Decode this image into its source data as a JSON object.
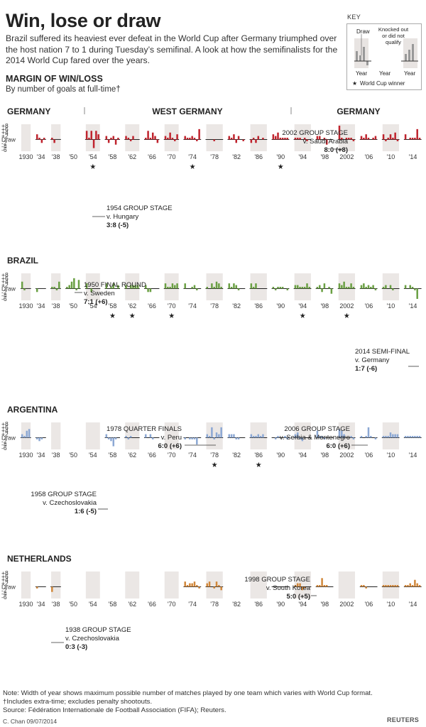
{
  "title": "Win, lose or draw",
  "intro": "Brazil suffered its heaviest ever defeat in the World Cup after Germany triumphed over the host nation 7 to 1 during Tuesday’s semifinal. A look at how the semifinalists for the 2014 World Cup fared over the years.",
  "subhead": "MARGIN OF WIN/LOSS",
  "subhead2": "By number of goals at full-time†",
  "key": {
    "title": "KEY",
    "draw": "Draw",
    "knocked_out": "Knocked out or did not qualify",
    "year": "Year",
    "winner": "World Cup winner"
  },
  "footnote": [
    "Note: Width of year shows maximum possible number of matches played by one team which varies with World Cup format.",
    "†Includes extra-time; excludes penalty shootouts.",
    "Source: Fédération Internationale de Football Association (FIFA); Reuters."
  ],
  "credit": "C. Chan 09/07/2014",
  "source_logo": "REUTERS",
  "chart_data": {
    "type": "bar",
    "ylim": [
      -6,
      8
    ],
    "yticks": [
      "+8",
      "+6",
      "+4",
      "+2",
      "Draw",
      "-2",
      "-4",
      "-6"
    ],
    "years": [
      1930,
      1934,
      1938,
      1950,
      1954,
      1958,
      1962,
      1966,
      1970,
      1974,
      1978,
      1982,
      1986,
      1990,
      1994,
      1998,
      2002,
      2006,
      2010,
      2014
    ],
    "year_labels": [
      "1930",
      "'34",
      "'38",
      "'50",
      "'54",
      "'58",
      "'62",
      "'66",
      "'70",
      "'74",
      "'78",
      "'82",
      "'86",
      "'90",
      "'94",
      "'98",
      "2002",
      "'06",
      "'10",
      "'14"
    ],
    "slots": [
      4,
      4,
      4,
      6,
      6,
      6,
      6,
      6,
      6,
      7,
      7,
      7,
      7,
      7,
      7,
      7,
      7,
      7,
      7,
      7
    ],
    "teams": [
      {
        "name": "GERMANY",
        "era_labels": [
          "GERMANY",
          "WEST GERMANY",
          "GERMANY"
        ],
        "color": "#c0242e",
        "stars": [
          1954,
          1974,
          1990
        ],
        "values": [
          null,
          [
            3,
            1,
            -2,
            1
          ],
          [
            1,
            -2
          ],
          null,
          [
            5,
            1,
            5,
            -5,
            5,
            3
          ],
          [
            2,
            -2,
            1,
            2,
            -3,
            1
          ],
          [
            2,
            1,
            -1,
            2
          ],
          [
            1,
            5,
            1,
            4,
            2,
            -2
          ],
          [
            2,
            1,
            4,
            1,
            -1,
            3
          ],
          [
            2,
            1,
            1,
            2,
            1,
            -1,
            6
          ],
          [
            0,
            0,
            0,
            -1
          ],
          [
            2,
            1,
            3,
            -2,
            2,
            0,
            -1
          ],
          [
            -2,
            1,
            -2,
            2,
            0,
            1
          ],
          [
            3,
            2,
            4,
            1,
            1,
            1,
            1
          ],
          [
            1,
            1,
            1,
            0,
            1,
            -1
          ],
          [
            2,
            2,
            0,
            1,
            -3
          ],
          [
            8,
            1,
            0,
            1,
            1,
            1,
            -1
          ],
          [
            2,
            1,
            3,
            1,
            0,
            1,
            2
          ],
          [
            3,
            -1,
            1,
            3,
            1,
            4,
            -1
          ],
          [
            3,
            0,
            1,
            1,
            1,
            6,
            1
          ]
        ],
        "annotations": [
          {
            "title": "1954 GROUP STAGE",
            "detail": "v. Hungary",
            "score": "3:8 (-5)"
          },
          {
            "title": "2002 GROUP STAGE",
            "detail": "v. Saudi Arabia",
            "score": "8:0 (+8)"
          }
        ]
      },
      {
        "name": "BRAZIL",
        "color": "#6aa043",
        "stars": [
          1958,
          1962,
          1970,
          1994,
          2002
        ],
        "values": [
          [
            4,
            -1
          ],
          [
            -2
          ],
          [
            1,
            1,
            -1,
            4
          ],
          [
            1,
            2,
            4,
            6,
            -1,
            5
          ],
          [
            3,
            0,
            -2
          ],
          [
            3,
            0,
            1,
            3,
            0,
            2
          ],
          [
            2,
            0,
            2,
            2,
            2,
            2
          ],
          [
            2,
            -2,
            -2
          ],
          [
            3,
            1,
            1,
            3,
            2,
            3
          ],
          [
            3,
            0,
            0,
            1,
            2,
            -1
          ],
          [
            1,
            0,
            3,
            1,
            4,
            3,
            1
          ],
          [
            3,
            1,
            3,
            2,
            -1
          ],
          [
            3,
            1,
            3,
            0,
            0
          ],
          [
            1,
            -1,
            1,
            1,
            1,
            0,
            -1
          ],
          [
            2,
            2,
            1,
            1,
            1,
            3,
            1
          ],
          [
            1,
            2,
            -2,
            3,
            0,
            1,
            -3
          ],
          [
            3,
            2,
            4,
            1,
            1,
            3,
            1
          ],
          [
            2,
            3,
            1,
            2,
            1,
            2,
            -1
          ],
          [
            1,
            2,
            0,
            2,
            -1
          ],
          [
            2,
            0,
            2,
            1,
            -1,
            -6
          ]
        ],
        "annotations": [
          {
            "title": "1950 FINAL ROUND",
            "detail": "v. Sweden",
            "score": "7:1 (+6)"
          },
          {
            "title": "2014 SEMI-FINAL",
            "detail": "v. Germany",
            "score": "1:7 (-6)"
          }
        ]
      },
      {
        "name": "ARGENTINA",
        "color": "#8ca8d4",
        "stars": [
          1978,
          1986
        ],
        "values": [
          [
            2,
            1,
            4,
            5
          ],
          [
            -1,
            -2,
            -1
          ],
          null,
          null,
          null,
          [
            2,
            -1,
            -2,
            -5,
            -1
          ],
          [
            1,
            -1,
            1
          ],
          [
            2,
            0,
            2,
            -1
          ],
          null,
          [
            -1,
            0,
            -1,
            -1,
            -1,
            -4,
            0
          ],
          [
            2,
            1,
            6,
            -1,
            3,
            2,
            6
          ],
          [
            2,
            2,
            2,
            -1,
            -1
          ],
          [
            2,
            1,
            1,
            2,
            1,
            2
          ],
          [
            0,
            -1,
            1,
            0,
            0,
            1,
            -1
          ],
          [
            2,
            3,
            -1,
            -2,
            0
          ],
          [
            4,
            1,
            1,
            -1
          ],
          [
            5,
            4,
            2,
            0,
            0,
            1,
            -1
          ],
          [
            1,
            0,
            1,
            6,
            1,
            0,
            -1
          ],
          [
            1,
            1,
            1,
            3,
            2,
            2,
            2
          ],
          [
            1,
            1,
            1,
            1,
            1,
            1,
            1
          ]
        ],
        "annotations": [
          {
            "title": "1978 QUARTER FINALS",
            "detail": "v. Peru",
            "score": "6:0 (+6)"
          },
          {
            "title": "2006 GROUP STAGE",
            "detail": "v. Serbia & Montenegro",
            "score": "6:0 (+6)"
          },
          {
            "title": "1958 GROUP STAGE",
            "detail": "v. Czechoslovakia",
            "score": "1:6 (-5)"
          }
        ]
      },
      {
        "name": "NETHERLANDS",
        "color": "#d1873a",
        "stars": [],
        "values": [
          null,
          [
            -1
          ],
          [
            -3
          ],
          null,
          null,
          null,
          null,
          null,
          null,
          [
            3,
            1,
            2,
            2,
            3,
            1,
            -1
          ],
          [
            2,
            3,
            0,
            -1,
            3,
            1,
            -2
          ],
          null,
          null,
          [
            0,
            0,
            0,
            0
          ],
          [
            1,
            2,
            2,
            -2,
            -1
          ],
          [
            1,
            1,
            5,
            1,
            1
          ],
          null,
          [
            1,
            1,
            -1
          ],
          [
            1,
            1,
            1,
            1,
            1,
            1,
            1
          ],
          [
            1,
            1,
            2,
            1,
            4,
            2,
            1
          ]
        ],
        "annotations": [
          {
            "title": "1938 GROUP STAGE",
            "detail": "v. Czechoslovakia",
            "score": "0:3 (-3)"
          },
          {
            "title": "1998 GROUP STAGE",
            "detail": "v. South Korea",
            "score": "5:0 (+5)"
          }
        ]
      }
    ]
  }
}
